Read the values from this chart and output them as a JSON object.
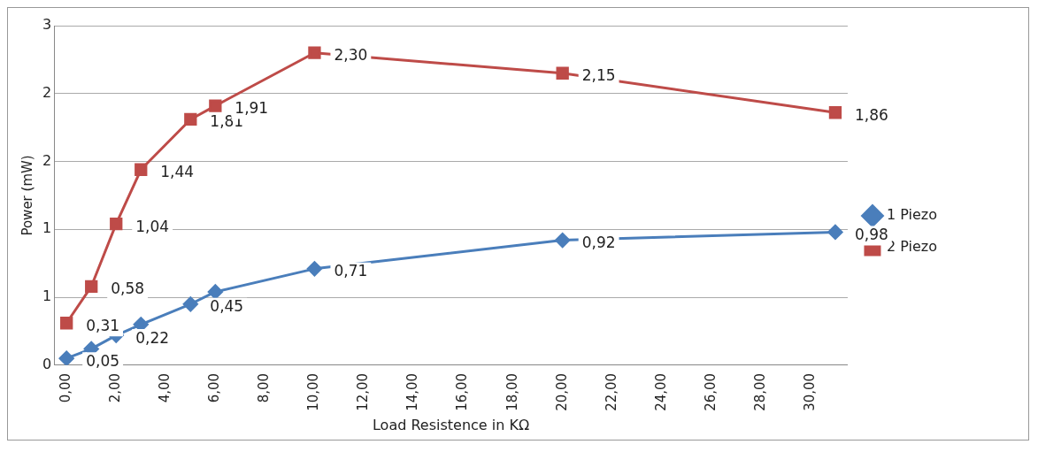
{
  "chart_data": {
    "type": "line",
    "xlabel": "Load Resistence in KΩ",
    "ylabel": "Power (mW)",
    "x": [
      0,
      1,
      2,
      3,
      5,
      6,
      10,
      20,
      31
    ],
    "series": [
      {
        "name": "1 Piezo",
        "color": "#4a7ebb",
        "marker": "diamond",
        "values": [
          0.05,
          0.12,
          0.22,
          0.3,
          0.45,
          0.54,
          0.71,
          0.92,
          0.98
        ],
        "value_labels": [
          "0,05",
          null,
          "0,22",
          null,
          "0,45",
          null,
          "0,71",
          "0,92",
          "0,98"
        ]
      },
      {
        "name": "2 Piezo",
        "color": "#be4b48",
        "marker": "square",
        "values": [
          0.31,
          0.58,
          1.04,
          1.44,
          1.81,
          1.91,
          2.3,
          2.15,
          1.86
        ],
        "value_labels": [
          "0,31",
          "0,58",
          "1,04",
          "1,44",
          "1,81",
          "1,91",
          "2,30",
          "2,15",
          "1,86"
        ]
      }
    ],
    "xlim": [
      -0.5,
      31.5
    ],
    "xticks": [
      {
        "value": 0,
        "label": "0,00"
      },
      {
        "value": 2,
        "label": "2,00"
      },
      {
        "value": 4,
        "label": "4,00"
      },
      {
        "value": 6,
        "label": "6,00"
      },
      {
        "value": 8,
        "label": "8,00"
      },
      {
        "value": 10,
        "label": "10,00"
      },
      {
        "value": 12,
        "label": "12,00"
      },
      {
        "value": 14,
        "label": "14,00"
      },
      {
        "value": 16,
        "label": "16,00"
      },
      {
        "value": 18,
        "label": "18,00"
      },
      {
        "value": 20,
        "label": "20,00"
      },
      {
        "value": 22,
        "label": "22,00"
      },
      {
        "value": 24,
        "label": "24,00"
      },
      {
        "value": 26,
        "label": "26,00"
      },
      {
        "value": 28,
        "label": "28,00"
      },
      {
        "value": 30,
        "label": "30,00"
      }
    ],
    "ylim": [
      0,
      2.5
    ],
    "yticks": [
      0,
      {
        "value": 0.5,
        "label": "1"
      },
      1,
      {
        "value": 1.5,
        "label": "2"
      },
      2,
      {
        "value": 2.5,
        "label": "3"
      }
    ],
    "grid": "y",
    "legend": "right"
  }
}
